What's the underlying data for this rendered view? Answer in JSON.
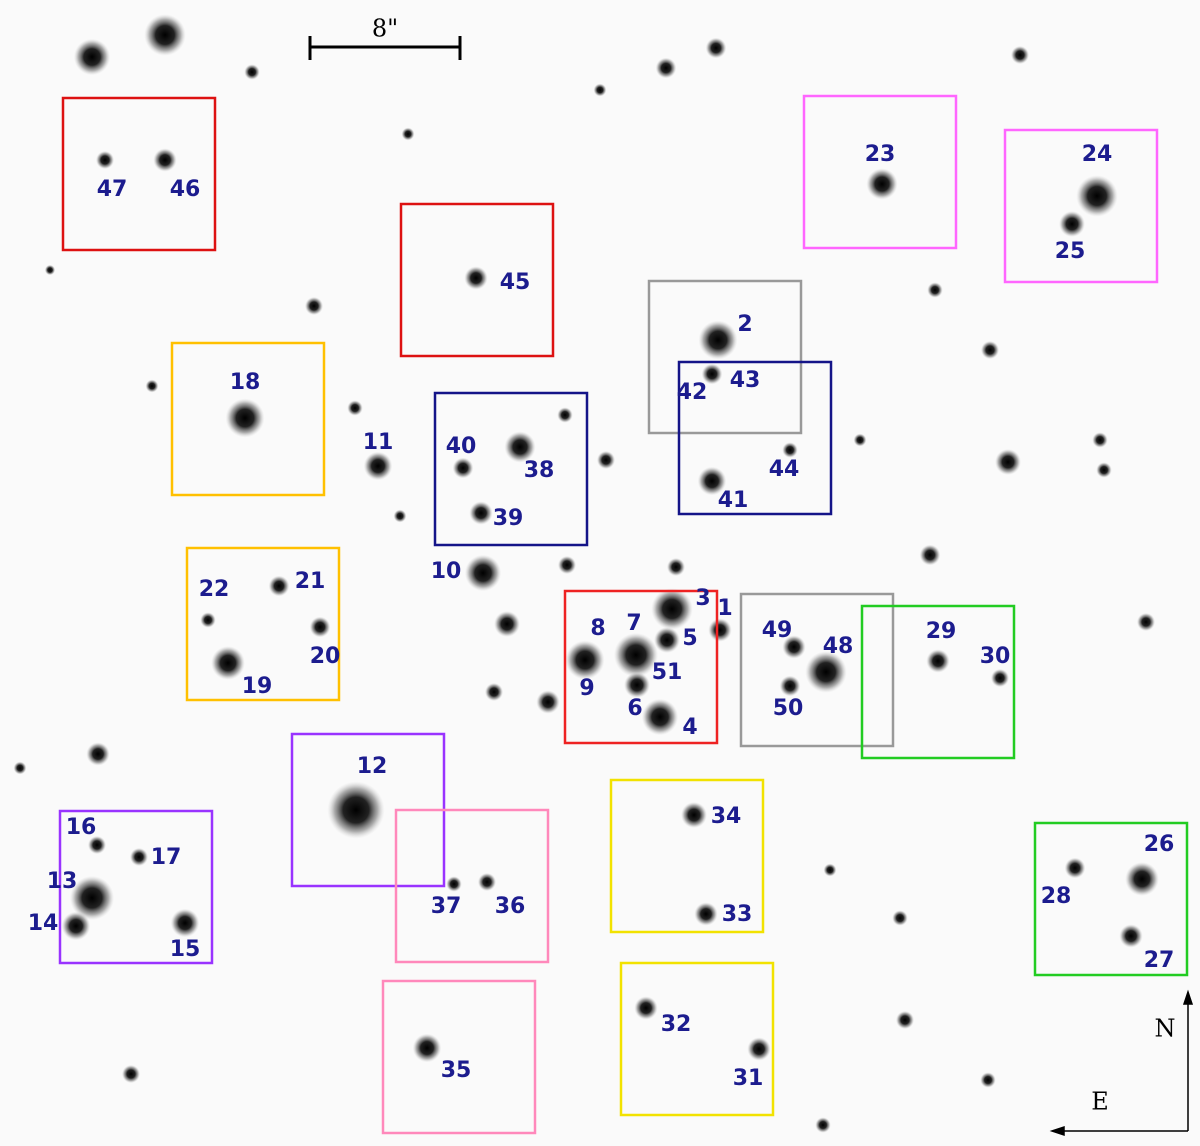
{
  "scale_bar": {
    "label": "8\""
  },
  "compass": {
    "north": "N",
    "east": "E"
  },
  "labels": [
    "47",
    "46",
    "45",
    "23",
    "24",
    "25",
    "2",
    "43",
    "42",
    "44",
    "41",
    "18",
    "11",
    "40",
    "38",
    "39",
    "10",
    "22",
    "21",
    "20",
    "19",
    "3",
    "1",
    "8",
    "7",
    "5",
    "51",
    "9",
    "6",
    "4",
    "49",
    "48",
    "50",
    "29",
    "30",
    "12",
    "16",
    "17",
    "13",
    "14",
    "15",
    "37",
    "36",
    "34",
    "33",
    "26",
    "28",
    "27",
    "32",
    "31",
    "35"
  ]
}
